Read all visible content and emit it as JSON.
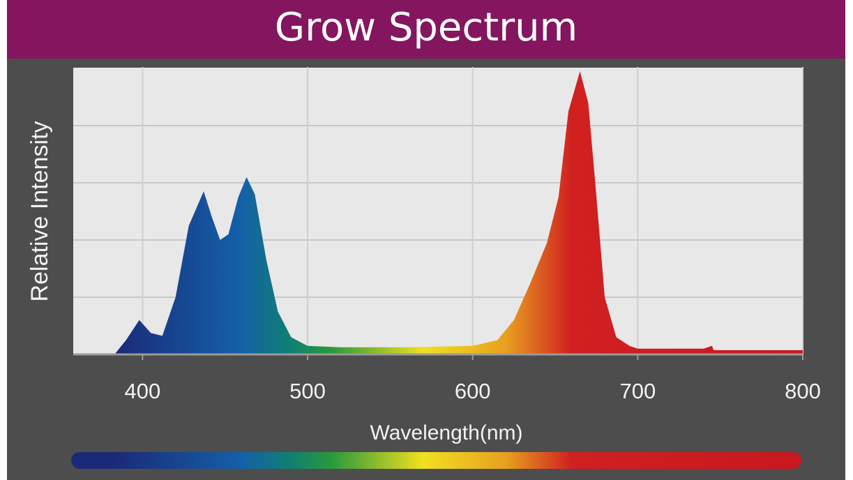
{
  "header": {
    "title": "Grow Spectrum"
  },
  "colors": {
    "header_bg": "#84155f",
    "panel_bg": "#4d4d4d",
    "plot_bg": "#e8e8e8",
    "grid": "#c8c8c8"
  },
  "chart_data": {
    "type": "area",
    "title": "Grow Spectrum",
    "xlabel": "Wavelength(nm)",
    "ylabel": "Relative Intensity",
    "xlim": [
      358,
      800
    ],
    "ylim": [
      0,
      1
    ],
    "xticks": [
      400,
      500,
      600,
      700,
      800
    ],
    "y_gridlines": 5,
    "grid": true,
    "legend": "none",
    "series": [
      {
        "x": [
          383,
          390,
          398,
          405,
          412,
          420,
          428,
          437,
          442,
          447,
          452,
          458,
          463,
          468,
          475,
          482,
          490,
          500,
          520,
          560,
          600,
          615,
          625,
          635,
          645,
          652,
          658,
          665,
          670,
          675,
          680,
          687,
          695,
          700,
          740,
          745,
          746,
          800
        ],
        "y": [
          0,
          0.05,
          0.12,
          0.075,
          0.065,
          0.2,
          0.45,
          0.57,
          0.48,
          0.4,
          0.42,
          0.55,
          0.62,
          0.56,
          0.33,
          0.15,
          0.06,
          0.03,
          0.025,
          0.025,
          0.03,
          0.05,
          0.12,
          0.25,
          0.39,
          0.55,
          0.85,
          0.99,
          0.88,
          0.55,
          0.2,
          0.06,
          0.03,
          0.02,
          0.02,
          0.03,
          0.015,
          0.015
        ]
      }
    ],
    "color_stops": [
      {
        "nm": 383,
        "color": "#1b2a78"
      },
      {
        "nm": 460,
        "color": "#1460a8"
      },
      {
        "nm": 490,
        "color": "#108070"
      },
      {
        "nm": 515,
        "color": "#2a9a3a"
      },
      {
        "nm": 570,
        "color": "#f0e020"
      },
      {
        "nm": 620,
        "color": "#e8a020"
      },
      {
        "nm": 660,
        "color": "#d02020"
      },
      {
        "nm": 800,
        "color": "#c81820"
      }
    ]
  }
}
